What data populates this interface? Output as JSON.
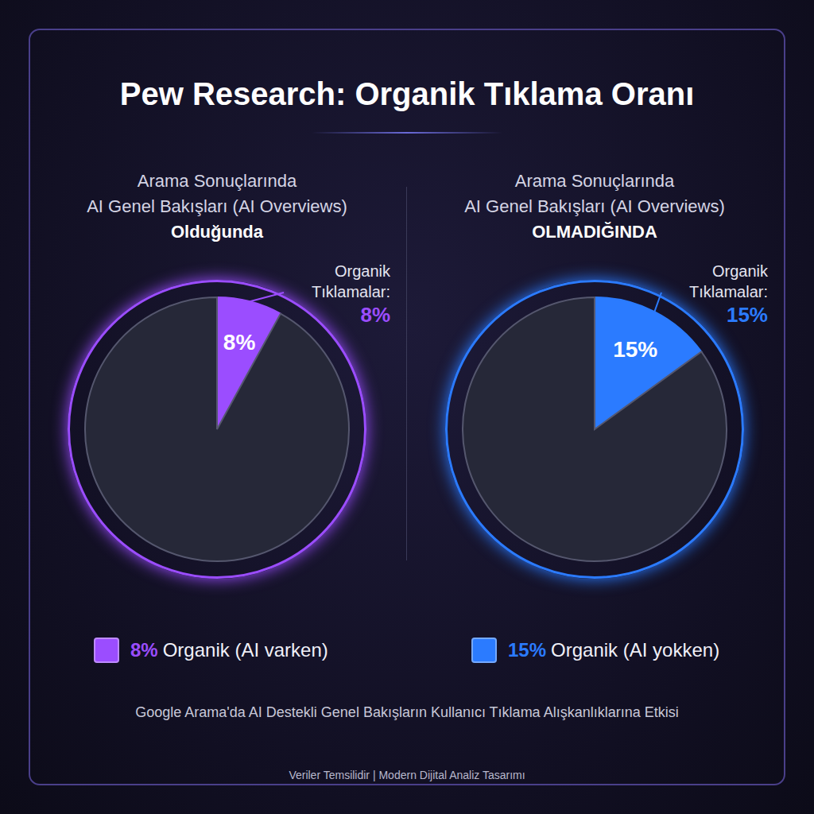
{
  "title": "Pew Research: Organik Tıklama Oranı",
  "chart_data": [
    {
      "type": "pie",
      "title": "Arama Sonuçlarında",
      "subtitle": "AI Genel Bakışları (AI Overviews)",
      "condition": "Olduğunda",
      "categories": [
        "Organik Tıklamalar",
        null
      ],
      "values": [
        8,
        92
      ],
      "value_labels": [
        "8%",
        null
      ],
      "data_labels": true,
      "colors": [
        "#9b4dff",
        "#262838"
      ],
      "annotation": "Organik Tıklamalar:",
      "legend_label": "8% Organik (AI varken)"
    },
    {
      "type": "pie",
      "title": "Arama Sonuçlarında",
      "subtitle": "AI Genel Bakışları (AI Overviews)",
      "condition": "OLMADIĞINDA",
      "categories": [
        "Organik Tıklamalar",
        null
      ],
      "values": [
        15,
        85
      ],
      "value_labels": [
        "15%",
        null
      ],
      "data_labels": true,
      "colors": [
        "#2b7bff",
        "#262838"
      ],
      "annotation": "Organik Tıklamalar:",
      "legend_label": "15% Organik (AI yokken)"
    }
  ],
  "caption": "Google Arama'da AI Destekli Genel Bakışların Kullanıcı Tıklama Alışkanlıklarına Etkisi",
  "footer": "Veriler Temsilidir | Modern Dijital Analiz Tasarımı"
}
